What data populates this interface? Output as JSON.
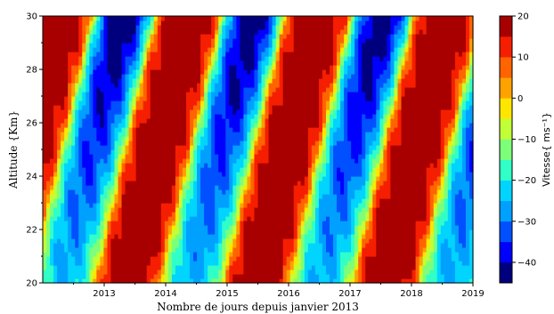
{
  "chart_data": {
    "type": "heatmap",
    "title": "",
    "xlabel": "Nombre de jours depuis janvier 2013",
    "ylabel": "Altitude {Km}",
    "x_ticks": [
      "2013",
      "2014",
      "2015",
      "2016",
      "2017",
      "2018",
      "2019"
    ],
    "y_ticks": [
      "20",
      "22",
      "24",
      "26",
      "28",
      "30"
    ],
    "xlim": [
      2012.0,
      2019.0
    ],
    "ylim": [
      20,
      30
    ],
    "colorbar": {
      "label": "Vitesse{ ms⁻¹}",
      "tick_values": [
        20,
        10,
        0,
        -10,
        -20,
        -30,
        -40
      ],
      "tick_labels": [
        "20",
        "10",
        "0",
        "−10",
        "−20",
        "−30",
        "−40"
      ],
      "range": [
        -45,
        20
      ],
      "levels": [
        -45,
        -40,
        -35,
        -30,
        -25,
        -20,
        -15,
        -10,
        -5,
        0,
        5,
        10,
        15,
        20
      ],
      "colors": [
        "#00007f",
        "#0000ff",
        "#0050ff",
        "#00a0ff",
        "#00d4ff",
        "#30ffc7",
        "#7dff7a",
        "#c1ff36",
        "#ffe600",
        "#ffa200",
        "#ff6400",
        "#f61e00",
        "#a80000"
      ]
    },
    "field": {
      "description_of_pattern": "QBO-like descending easterly/westerly bands",
      "westerly_phase_starts_at_30km": [
        2012.05,
        2014.15,
        2016.2,
        2018.3
      ],
      "easterly_phase_starts_at_30km": [
        2013.1,
        2015.05,
        2017.2
      ],
      "descent_rate_km_per_year": 10,
      "westerly_max": 20,
      "easterly_min": -45
    }
  }
}
